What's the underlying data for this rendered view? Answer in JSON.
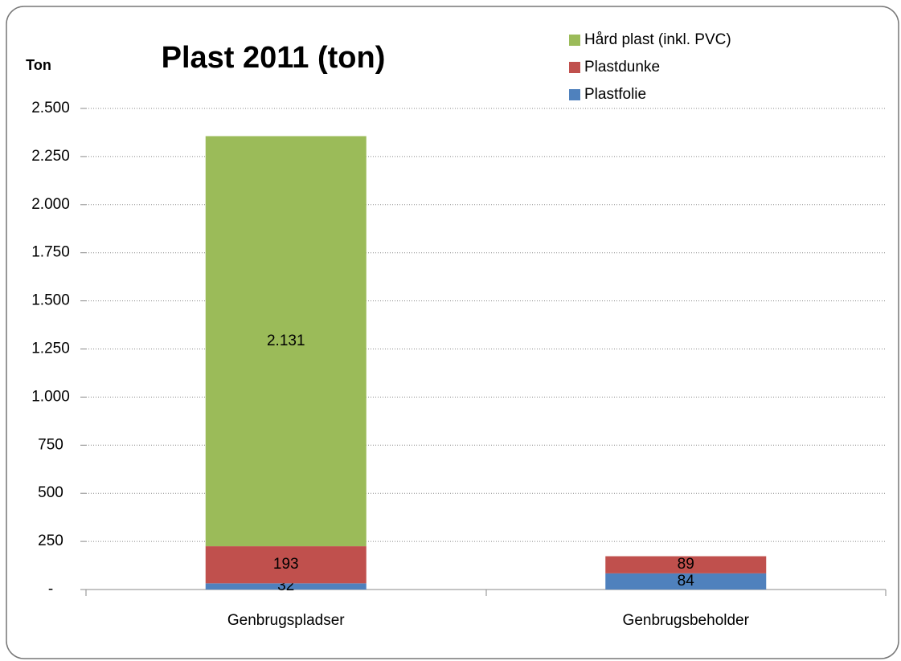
{
  "chart_data": {
    "type": "stacked_bar",
    "title": "Plast 2011 (ton)",
    "y_label": "Ton",
    "categories": [
      "Genbrugspladser",
      "Genbrugsbeholder"
    ],
    "series": [
      {
        "name": "Plastfolie",
        "color": "#4f81bd",
        "values": [
          32,
          84
        ]
      },
      {
        "name": "Plastdunke",
        "color": "#c0504d",
        "values": [
          193,
          89
        ]
      },
      {
        "name": "Hård plast (inkl. PVC)",
        "color": "#9bbb59",
        "values": [
          2131,
          null
        ],
        "value_labels": [
          "2.131",
          null
        ]
      }
    ],
    "ylim": [
      0,
      2500
    ],
    "yticks": [
      {
        "value": 0,
        "label": "-"
      },
      250,
      500,
      750,
      {
        "value": 1000,
        "label": "1.000"
      },
      {
        "value": 1250,
        "label": "1.250"
      },
      {
        "value": 1500,
        "label": "1.500"
      },
      {
        "value": 1750,
        "label": "1.750"
      },
      {
        "value": 2000,
        "label": "2.000"
      },
      {
        "value": 2250,
        "label": "2.250"
      },
      {
        "value": 2500,
        "label": "2.500"
      }
    ],
    "grid": true,
    "legend": "top-right"
  }
}
